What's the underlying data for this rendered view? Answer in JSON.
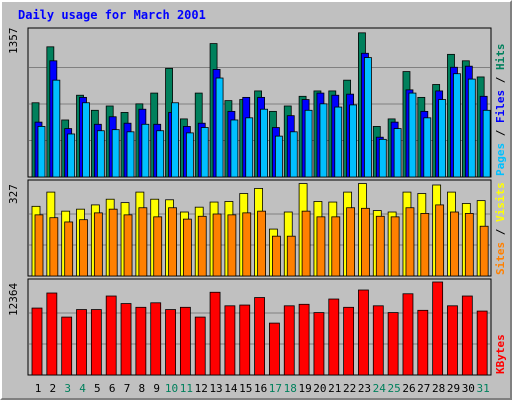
{
  "title": "Daily usage for March 2001",
  "colors": {
    "background": "#c0c0c0",
    "title": "#0000ff",
    "hits": "#00805c",
    "files": "#0000ff",
    "pages": "#00c0ff",
    "visits": "#ffff00",
    "sites": "#ff8000",
    "kbytes": "#ff0000",
    "weekday": "#000000",
    "weekend": "#00805c"
  },
  "chart_data": [
    {
      "type": "bar",
      "panel": "hits-files-pages",
      "ymax_label": "1357",
      "ylim": [
        0,
        1357
      ],
      "categories": [
        "1",
        "2",
        "3",
        "4",
        "5",
        "6",
        "7",
        "8",
        "9",
        "10",
        "11",
        "12",
        "13",
        "14",
        "15",
        "16",
        "17",
        "18",
        "19",
        "20",
        "21",
        "22",
        "23",
        "24",
        "25",
        "26",
        "27",
        "28",
        "29",
        "30",
        "31"
      ],
      "series": [
        {
          "name": "Hits",
          "values": [
            690,
            1210,
            530,
            760,
            620,
            660,
            600,
            680,
            780,
            1010,
            540,
            780,
            1240,
            710,
            720,
            800,
            610,
            660,
            750,
            800,
            800,
            900,
            1340,
            470,
            540,
            980,
            740,
            860,
            1140,
            1080,
            930
          ]
        },
        {
          "name": "Files",
          "values": [
            510,
            1080,
            450,
            740,
            490,
            560,
            500,
            630,
            490,
            600,
            470,
            500,
            1000,
            610,
            740,
            740,
            460,
            570,
            720,
            780,
            760,
            770,
            1150,
            370,
            510,
            810,
            610,
            800,
            1020,
            1030,
            750
          ]
        },
        {
          "name": "Pages",
          "values": [
            470,
            900,
            400,
            690,
            430,
            440,
            420,
            490,
            430,
            690,
            410,
            460,
            920,
            530,
            550,
            630,
            380,
            420,
            620,
            680,
            650,
            670,
            1110,
            350,
            450,
            780,
            550,
            720,
            960,
            910,
            620
          ]
        }
      ]
    },
    {
      "type": "bar",
      "panel": "visits-sites",
      "ymax_label": "327",
      "ylim": [
        0,
        327
      ],
      "categories": [
        "1",
        "2",
        "3",
        "4",
        "5",
        "6",
        "7",
        "8",
        "9",
        "10",
        "11",
        "12",
        "13",
        "14",
        "15",
        "16",
        "17",
        "18",
        "19",
        "20",
        "21",
        "22",
        "23",
        "24",
        "25",
        "26",
        "27",
        "28",
        "29",
        "30",
        "31"
      ],
      "series": [
        {
          "name": "Visits",
          "values": [
            245,
            295,
            228,
            235,
            250,
            270,
            258,
            295,
            270,
            268,
            225,
            242,
            260,
            262,
            290,
            308,
            165,
            225,
            325,
            262,
            260,
            295,
            325,
            230,
            225,
            295,
            290,
            320,
            295,
            255,
            265
          ]
        },
        {
          "name": "Sites",
          "values": [
            215,
            205,
            190,
            198,
            222,
            235,
            215,
            240,
            208,
            240,
            200,
            210,
            218,
            215,
            222,
            228,
            140,
            140,
            228,
            208,
            208,
            240,
            238,
            210,
            208,
            240,
            220,
            250,
            225,
            220,
            175
          ]
        }
      ]
    },
    {
      "type": "bar",
      "panel": "kbytes",
      "ymax_label": "12364",
      "ylim": [
        0,
        12364
      ],
      "categories": [
        "1",
        "2",
        "3",
        "4",
        "5",
        "6",
        "7",
        "8",
        "9",
        "10",
        "11",
        "12",
        "13",
        "14",
        "15",
        "16",
        "17",
        "18",
        "19",
        "20",
        "21",
        "22",
        "23",
        "24",
        "25",
        "26",
        "27",
        "28",
        "29",
        "30",
        "31"
      ],
      "series": [
        {
          "name": "KBytes",
          "values": [
            8900,
            10900,
            7700,
            8700,
            8700,
            10500,
            9500,
            9000,
            9600,
            8700,
            9000,
            7700,
            11000,
            9200,
            9300,
            10300,
            6900,
            9200,
            9400,
            8300,
            10100,
            9000,
            11300,
            9200,
            8300,
            10800,
            8600,
            12364,
            9200,
            10500,
            8500
          ]
        }
      ]
    }
  ],
  "right_labels": {
    "top": [
      {
        "text": "Pages",
        "color": "#00c0ff"
      },
      {
        "text": " / ",
        "color": "#000000"
      },
      {
        "text": "Files",
        "color": "#0000ff"
      },
      {
        "text": " / ",
        "color": "#000000"
      },
      {
        "text": "Hits",
        "color": "#00805c"
      }
    ],
    "mid": [
      {
        "text": "Sites",
        "color": "#ff8000"
      },
      {
        "text": " / ",
        "color": "#000000"
      },
      {
        "text": "Visits",
        "color": "#ffff00"
      }
    ],
    "bottom": [
      {
        "text": "KBytes",
        "color": "#ff0000"
      }
    ]
  },
  "weekend_days": [
    "3",
    "4",
    "10",
    "11",
    "17",
    "18",
    "24",
    "25",
    "31"
  ]
}
